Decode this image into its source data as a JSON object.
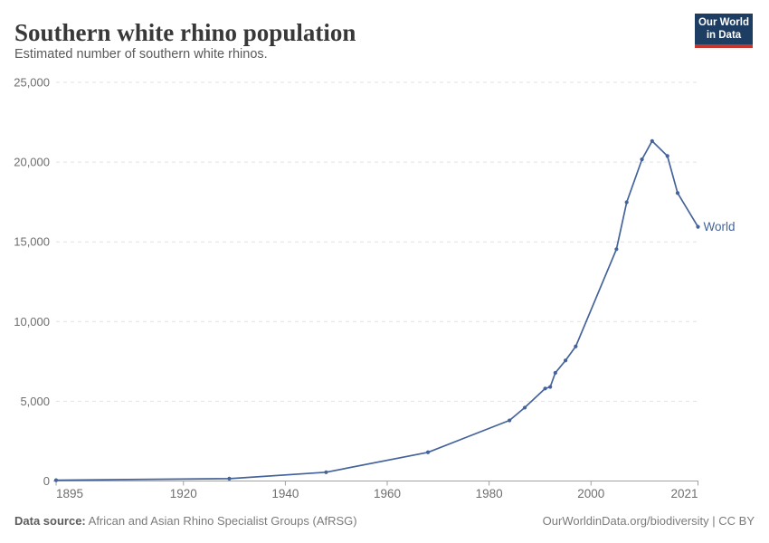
{
  "header": {
    "title": "Southern white rhino population",
    "subtitle": "Estimated number of southern white rhinos.",
    "logo": {
      "line1": "Our World",
      "line2": "in Data",
      "bg_color": "#1d3d63",
      "accent_color": "#c4372f"
    }
  },
  "chart_data": {
    "type": "line",
    "title": "Southern white rhino population",
    "subtitle": "Estimated number of southern white rhinos.",
    "series": [
      {
        "name": "World",
        "color": "#44639b",
        "points": [
          [
            1895,
            50
          ],
          [
            1929,
            150
          ],
          [
            1948,
            550
          ],
          [
            1968,
            1800
          ],
          [
            1984,
            3800
          ],
          [
            1987,
            4600
          ],
          [
            1991,
            5800
          ],
          [
            1992,
            5900
          ],
          [
            1993,
            6780
          ],
          [
            1995,
            7560
          ],
          [
            1997,
            8440
          ],
          [
            2005,
            14540
          ],
          [
            2007,
            17480
          ],
          [
            2010,
            20170
          ],
          [
            2012,
            21320
          ],
          [
            2015,
            20380
          ],
          [
            2017,
            18060
          ],
          [
            2021,
            15940
          ]
        ]
      }
    ],
    "x": {
      "range": [
        1895,
        2021
      ],
      "ticks": [
        1895,
        1920,
        1940,
        1960,
        1980,
        2000,
        2021
      ],
      "tick_labels": [
        "1895",
        "1920",
        "1940",
        "1960",
        "1980",
        "2000",
        "2021"
      ]
    },
    "y": {
      "range": [
        0,
        25000
      ],
      "ticks": [
        0,
        5000,
        10000,
        15000,
        20000,
        25000
      ],
      "tick_labels": [
        "0",
        "5,000",
        "10,000",
        "15,000",
        "20,000",
        "25,000"
      ]
    },
    "grid": {
      "horizontal": true,
      "style": "dashed",
      "color": "#e2e2e2"
    },
    "axis_color": "#a1a1a1",
    "tick_label_color": "#6e6e6e",
    "end_label": "World",
    "legend_position": "end-of-line",
    "markers": true
  },
  "footer": {
    "source_label": "Data source:",
    "source_text": " African and Asian Rhino Specialist Groups (AfRSG)",
    "credit": "OurWorldinData.org/biodiversity | CC BY"
  }
}
